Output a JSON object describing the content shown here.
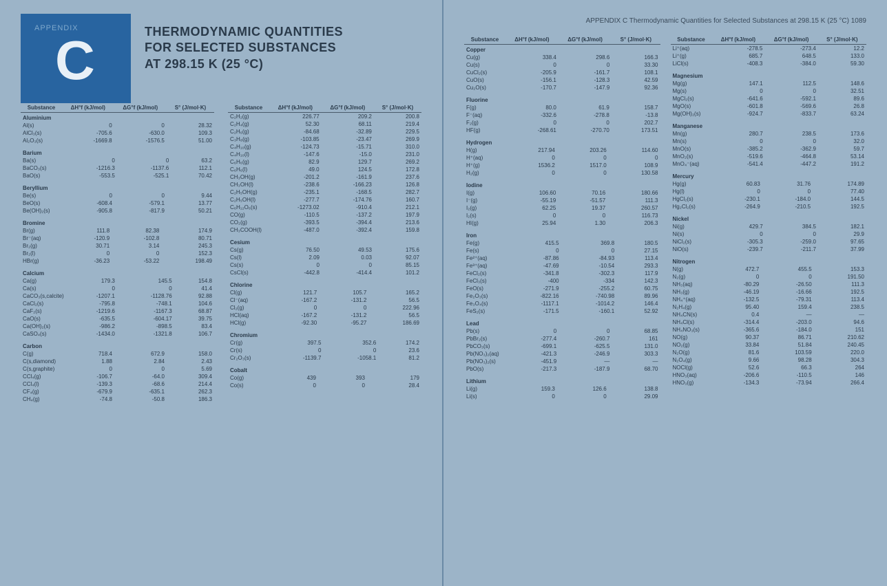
{
  "header": {
    "appendix_label": "APPENDIX",
    "big_letter": "C",
    "title_l1": "THERMODYNAMIC QUANTITIES",
    "title_l2": "FOR SELECTED SUBSTANCES",
    "title_l3": "AT 298.15 K (25 °C)"
  },
  "right_header": "APPENDIX C Thermodynamic Quantities for Selected Substances at 298.15 K (25 °C)   1089",
  "col_headers": {
    "sub": "Substance",
    "dHf": "ΔH°f (kJ/mol)",
    "dGf": "ΔG°f (kJ/mol)",
    "S": "S° (J/mol·K)"
  },
  "left_sections": [
    {
      "name": "Aluminium",
      "rows": [
        {
          "n": "Al(s)",
          "h": "0",
          "g": "0",
          "s": "28.32"
        },
        {
          "n": "AlCl₃(s)",
          "h": "-705.6",
          "g": "-630.0",
          "s": "109.3"
        },
        {
          "n": "Al₂O₃(s)",
          "h": "-1669.8",
          "g": "-1576.5",
          "s": "51.00"
        }
      ]
    },
    {
      "name": "Barium",
      "rows": [
        {
          "n": "Ba(s)",
          "h": "0",
          "g": "0",
          "s": "63.2"
        },
        {
          "n": "BaCO₃(s)",
          "h": "-1216.3",
          "g": "-1137.6",
          "s": "112.1"
        },
        {
          "n": "BaO(s)",
          "h": "-553.5",
          "g": "-525.1",
          "s": "70.42"
        }
      ]
    },
    {
      "name": "Beryllium",
      "rows": [
        {
          "n": "Be(s)",
          "h": "0",
          "g": "0",
          "s": "9.44"
        },
        {
          "n": "BeO(s)",
          "h": "-608.4",
          "g": "-579.1",
          "s": "13.77"
        },
        {
          "n": "Be(OH)₂(s)",
          "h": "-905.8",
          "g": "-817.9",
          "s": "50.21"
        }
      ]
    },
    {
      "name": "Bromine",
      "rows": [
        {
          "n": "Br(g)",
          "h": "111.8",
          "g": "82.38",
          "s": "174.9"
        },
        {
          "n": "Br⁻(aq)",
          "h": "-120.9",
          "g": "-102.8",
          "s": "80.71"
        },
        {
          "n": "Br₂(g)",
          "h": "30.71",
          "g": "3.14",
          "s": "245.3"
        },
        {
          "n": "Br₂(l)",
          "h": "0",
          "g": "0",
          "s": "152.3"
        },
        {
          "n": "HBr(g)",
          "h": "-36.23",
          "g": "-53.22",
          "s": "198.49"
        }
      ]
    },
    {
      "name": "Calcium",
      "rows": [
        {
          "n": "Ca(g)",
          "h": "179.3",
          "g": "145.5",
          "s": "154.8"
        },
        {
          "n": "Ca(s)",
          "h": "0",
          "g": "0",
          "s": "41.4"
        },
        {
          "n": "CaCO₃(s,calcite)",
          "h": "-1207.1",
          "g": "-1128.76",
          "s": "92.88"
        },
        {
          "n": "CaCl₂(s)",
          "h": "-795.8",
          "g": "-748.1",
          "s": "104.6"
        },
        {
          "n": "CaF₂(s)",
          "h": "-1219.6",
          "g": "-1167.3",
          "s": "68.87"
        },
        {
          "n": "CaO(s)",
          "h": "-635.5",
          "g": "-604.17",
          "s": "39.75"
        },
        {
          "n": "Ca(OH)₂(s)",
          "h": "-986.2",
          "g": "-898.5",
          "s": "83.4"
        },
        {
          "n": "CaSO₄(s)",
          "h": "-1434.0",
          "g": "-1321.8",
          "s": "106.7"
        }
      ]
    },
    {
      "name": "Carbon",
      "rows": [
        {
          "n": "C(g)",
          "h": "718.4",
          "g": "672.9",
          "s": "158.0"
        },
        {
          "n": "C(s,diamond)",
          "h": "1.88",
          "g": "2.84",
          "s": "2.43"
        },
        {
          "n": "C(s,graphite)",
          "h": "0",
          "g": "0",
          "s": "5.69"
        },
        {
          "n": "CCl₄(g)",
          "h": "-106.7",
          "g": "-64.0",
          "s": "309.4"
        },
        {
          "n": "CCl₄(l)",
          "h": "-139.3",
          "g": "-68.6",
          "s": "214.4"
        },
        {
          "n": "CF₄(g)",
          "h": "-679.9",
          "g": "-635.1",
          "s": "262.3"
        },
        {
          "n": "CH₄(g)",
          "h": "-74.8",
          "g": "-50.8",
          "s": "186.3"
        }
      ]
    }
  ],
  "left_sections_col2": [
    {
      "name": "",
      "rows": [
        {
          "n": "C₂H₂(g)",
          "h": "226.77",
          "g": "209.2",
          "s": "200.8"
        },
        {
          "n": "C₂H₄(g)",
          "h": "52.30",
          "g": "68.11",
          "s": "219.4"
        },
        {
          "n": "C₂H₆(g)",
          "h": "-84.68",
          "g": "-32.89",
          "s": "229.5"
        },
        {
          "n": "C₃H₈(g)",
          "h": "-103.85",
          "g": "-23.47",
          "s": "269.9"
        },
        {
          "n": "C₄H₁₀(g)",
          "h": "-124.73",
          "g": "-15.71",
          "s": "310.0"
        },
        {
          "n": "C₄H₁₀(l)",
          "h": "-147.6",
          "g": "-15.0",
          "s": "231.0"
        },
        {
          "n": "C₆H₆(g)",
          "h": "82.9",
          "g": "129.7",
          "s": "269.2"
        },
        {
          "n": "C₆H₆(l)",
          "h": "49.0",
          "g": "124.5",
          "s": "172.8"
        },
        {
          "n": "CH₃OH(g)",
          "h": "-201.2",
          "g": "-161.9",
          "s": "237.6"
        },
        {
          "n": "CH₃OH(l)",
          "h": "-238.6",
          "g": "-166.23",
          "s": "126.8"
        },
        {
          "n": "C₂H₅OH(g)",
          "h": "-235.1",
          "g": "-168.5",
          "s": "282.7"
        },
        {
          "n": "C₂H₅OH(l)",
          "h": "-277.7",
          "g": "-174.76",
          "s": "160.7"
        },
        {
          "n": "C₆H₁₂O₆(s)",
          "h": "-1273.02",
          "g": "-910.4",
          "s": "212.1"
        },
        {
          "n": "CO(g)",
          "h": "-110.5",
          "g": "-137.2",
          "s": "197.9"
        },
        {
          "n": "CO₂(g)",
          "h": "-393.5",
          "g": "-394.4",
          "s": "213.6"
        },
        {
          "n": "CH₃COOH(l)",
          "h": "-487.0",
          "g": "-392.4",
          "s": "159.8"
        }
      ]
    },
    {
      "name": "Cesium",
      "rows": [
        {
          "n": "Cs(g)",
          "h": "76.50",
          "g": "49.53",
          "s": "175.6"
        },
        {
          "n": "Cs(l)",
          "h": "2.09",
          "g": "0.03",
          "s": "92.07"
        },
        {
          "n": "Cs(s)",
          "h": "0",
          "g": "0",
          "s": "85.15"
        },
        {
          "n": "CsCl(s)",
          "h": "-442.8",
          "g": "-414.4",
          "s": "101.2"
        }
      ]
    },
    {
      "name": "Chlorine",
      "rows": [
        {
          "n": "Cl(g)",
          "h": "121.7",
          "g": "105.7",
          "s": "165.2"
        },
        {
          "n": "Cl⁻(aq)",
          "h": "-167.2",
          "g": "-131.2",
          "s": "56.5"
        },
        {
          "n": "Cl₂(g)",
          "h": "0",
          "g": "0",
          "s": "222.96"
        },
        {
          "n": "HCl(aq)",
          "h": "-167.2",
          "g": "-131.2",
          "s": "56.5"
        },
        {
          "n": "HCl(g)",
          "h": "-92.30",
          "g": "-95.27",
          "s": "186.69"
        }
      ]
    },
    {
      "name": "Chromium",
      "rows": [
        {
          "n": "Cr(g)",
          "h": "397.5",
          "g": "352.6",
          "s": "174.2"
        },
        {
          "n": "Cr(s)",
          "h": "0",
          "g": "0",
          "s": "23.6"
        },
        {
          "n": "Cr₂O₃(s)",
          "h": "-1139.7",
          "g": "-1058.1",
          "s": "81.2"
        }
      ]
    },
    {
      "name": "Cobalt",
      "rows": [
        {
          "n": "Co(g)",
          "h": "439",
          "g": "393",
          "s": "179"
        },
        {
          "n": "Co(s)",
          "h": "0",
          "g": "0",
          "s": "28.4"
        }
      ]
    }
  ],
  "right_sections": [
    {
      "name": "Copper",
      "rows": [
        {
          "n": "Cu(g)",
          "h": "338.4",
          "g": "298.6",
          "s": "166.3"
        },
        {
          "n": "Cu(s)",
          "h": "0",
          "g": "0",
          "s": "33.30"
        },
        {
          "n": "CuCl₂(s)",
          "h": "-205.9",
          "g": "-161.7",
          "s": "108.1"
        },
        {
          "n": "CuO(s)",
          "h": "-156.1",
          "g": "-128.3",
          "s": "42.59"
        },
        {
          "n": "Cu₂O(s)",
          "h": "-170.7",
          "g": "-147.9",
          "s": "92.36"
        }
      ]
    },
    {
      "name": "Fluorine",
      "rows": [
        {
          "n": "F(g)",
          "h": "80.0",
          "g": "61.9",
          "s": "158.7"
        },
        {
          "n": "F⁻(aq)",
          "h": "-332.6",
          "g": "-278.8",
          "s": "-13.8"
        },
        {
          "n": "F₂(g)",
          "h": "0",
          "g": "0",
          "s": "202.7"
        },
        {
          "n": "HF(g)",
          "h": "-268.61",
          "g": "-270.70",
          "s": "173.51"
        }
      ]
    },
    {
      "name": "Hydrogen",
      "rows": [
        {
          "n": "H(g)",
          "h": "217.94",
          "g": "203.26",
          "s": "114.60"
        },
        {
          "n": "H⁺(aq)",
          "h": "0",
          "g": "0",
          "s": "0"
        },
        {
          "n": "H⁺(g)",
          "h": "1536.2",
          "g": "1517.0",
          "s": "108.9"
        },
        {
          "n": "H₂(g)",
          "h": "0",
          "g": "0",
          "s": "130.58"
        }
      ]
    },
    {
      "name": "Iodine",
      "rows": [
        {
          "n": "I(g)",
          "h": "106.60",
          "g": "70.16",
          "s": "180.66"
        },
        {
          "n": "I⁻(g)",
          "h": "-55.19",
          "g": "-51.57",
          "s": "111.3"
        },
        {
          "n": "I₂(g)",
          "h": "62.25",
          "g": "19.37",
          "s": "260.57"
        },
        {
          "n": "I₂(s)",
          "h": "0",
          "g": "0",
          "s": "116.73"
        },
        {
          "n": "HI(g)",
          "h": "25.94",
          "g": "1.30",
          "s": "206.3"
        }
      ]
    },
    {
      "name": "Iron",
      "rows": [
        {
          "n": "Fe(g)",
          "h": "415.5",
          "g": "369.8",
          "s": "180.5"
        },
        {
          "n": "Fe(s)",
          "h": "0",
          "g": "0",
          "s": "27.15"
        },
        {
          "n": "Fe²⁺(aq)",
          "h": "-87.86",
          "g": "-84.93",
          "s": "113.4"
        },
        {
          "n": "Fe³⁺(aq)",
          "h": "-47.69",
          "g": "-10.54",
          "s": "293.3"
        },
        {
          "n": "FeCl₂(s)",
          "h": "-341.8",
          "g": "-302.3",
          "s": "117.9"
        },
        {
          "n": "FeCl₃(s)",
          "h": "-400",
          "g": "-334",
          "s": "142.3"
        },
        {
          "n": "FeO(s)",
          "h": "-271.9",
          "g": "-255.2",
          "s": "60.75"
        },
        {
          "n": "Fe₂O₃(s)",
          "h": "-822.16",
          "g": "-740.98",
          "s": "89.96"
        },
        {
          "n": "Fe₃O₄(s)",
          "h": "-1117.1",
          "g": "-1014.2",
          "s": "146.4"
        },
        {
          "n": "FeS₂(s)",
          "h": "-171.5",
          "g": "-160.1",
          "s": "52.92"
        }
      ]
    },
    {
      "name": "Lead",
      "rows": [
        {
          "n": "Pb(s)",
          "h": "0",
          "g": "0",
          "s": "68.85"
        },
        {
          "n": "PbBr₂(s)",
          "h": "-277.4",
          "g": "-260.7",
          "s": "161"
        },
        {
          "n": "PbCO₃(s)",
          "h": "-699.1",
          "g": "-625.5",
          "s": "131.0"
        },
        {
          "n": "Pb(NO₃)₂(aq)",
          "h": "-421.3",
          "g": "-246.9",
          "s": "303.3"
        },
        {
          "n": "Pb(NO₃)₂(s)",
          "h": "-451.9",
          "g": "—",
          "s": "—"
        },
        {
          "n": "PbO(s)",
          "h": "-217.3",
          "g": "-187.9",
          "s": "68.70"
        }
      ]
    },
    {
      "name": "Lithium",
      "rows": [
        {
          "n": "Li(g)",
          "h": "159.3",
          "g": "126.6",
          "s": "138.8"
        },
        {
          "n": "Li(s)",
          "h": "0",
          "g": "0",
          "s": "29.09"
        }
      ]
    }
  ],
  "right_sections_col2": [
    {
      "name": "",
      "rows": [
        {
          "n": "Li⁺(aq)",
          "h": "-278.5",
          "g": "-273.4",
          "s": "12.2"
        },
        {
          "n": "Li⁺(g)",
          "h": "685.7",
          "g": "648.5",
          "s": "133.0"
        },
        {
          "n": "LiCl(s)",
          "h": "-408.3",
          "g": "-384.0",
          "s": "59.30"
        }
      ]
    },
    {
      "name": "Magnesium",
      "rows": [
        {
          "n": "Mg(g)",
          "h": "147.1",
          "g": "112.5",
          "s": "148.6"
        },
        {
          "n": "Mg(s)",
          "h": "0",
          "g": "0",
          "s": "32.51"
        },
        {
          "n": "MgCl₂(s)",
          "h": "-641.6",
          "g": "-592.1",
          "s": "89.6"
        },
        {
          "n": "MgO(s)",
          "h": "-601.8",
          "g": "-569.6",
          "s": "26.8"
        },
        {
          "n": "Mg(OH)₂(s)",
          "h": "-924.7",
          "g": "-833.7",
          "s": "63.24"
        }
      ]
    },
    {
      "name": "Manganese",
      "rows": [
        {
          "n": "Mn(g)",
          "h": "280.7",
          "g": "238.5",
          "s": "173.6"
        },
        {
          "n": "Mn(s)",
          "h": "0",
          "g": "0",
          "s": "32.0"
        },
        {
          "n": "MnO(s)",
          "h": "-385.2",
          "g": "-362.9",
          "s": "59.7"
        },
        {
          "n": "MnO₂(s)",
          "h": "-519.6",
          "g": "-464.8",
          "s": "53.14"
        },
        {
          "n": "MnO₄⁻(aq)",
          "h": "-541.4",
          "g": "-447.2",
          "s": "191.2"
        }
      ]
    },
    {
      "name": "Mercury",
      "rows": [
        {
          "n": "Hg(g)",
          "h": "60.83",
          "g": "31.76",
          "s": "174.89"
        },
        {
          "n": "Hg(l)",
          "h": "0",
          "g": "0",
          "s": "77.40"
        },
        {
          "n": "HgCl₂(s)",
          "h": "-230.1",
          "g": "-184.0",
          "s": "144.5"
        },
        {
          "n": "Hg₂Cl₂(s)",
          "h": "-264.9",
          "g": "-210.5",
          "s": "192.5"
        }
      ]
    },
    {
      "name": "Nickel",
      "rows": [
        {
          "n": "Ni(g)",
          "h": "429.7",
          "g": "384.5",
          "s": "182.1"
        },
        {
          "n": "Ni(s)",
          "h": "0",
          "g": "0",
          "s": "29.9"
        },
        {
          "n": "NiCl₂(s)",
          "h": "-305.3",
          "g": "-259.0",
          "s": "97.65"
        },
        {
          "n": "NiO(s)",
          "h": "-239.7",
          "g": "-211.7",
          "s": "37.99"
        }
      ]
    },
    {
      "name": "Nitrogen",
      "rows": [
        {
          "n": "N(g)",
          "h": "472.7",
          "g": "455.5",
          "s": "153.3"
        },
        {
          "n": "N₂(g)",
          "h": "0",
          "g": "0",
          "s": "191.50"
        },
        {
          "n": "NH₃(aq)",
          "h": "-80.29",
          "g": "-26.50",
          "s": "111.3"
        },
        {
          "n": "NH₃(g)",
          "h": "-46.19",
          "g": "-16.66",
          "s": "192.5"
        },
        {
          "n": "NH₄⁺(aq)",
          "h": "-132.5",
          "g": "-79.31",
          "s": "113.4"
        },
        {
          "n": "N₂H₄(g)",
          "h": "95.40",
          "g": "159.4",
          "s": "238.5"
        },
        {
          "n": "NH₄CN(s)",
          "h": "0.4",
          "g": "—",
          "s": "—"
        },
        {
          "n": "NH₄Cl(s)",
          "h": "-314.4",
          "g": "-203.0",
          "s": "94.6"
        },
        {
          "n": "NH₄NO₃(s)",
          "h": "-365.6",
          "g": "-184.0",
          "s": "151"
        },
        {
          "n": "NO(g)",
          "h": "90.37",
          "g": "86.71",
          "s": "210.62"
        },
        {
          "n": "NO₂(g)",
          "h": "33.84",
          "g": "51.84",
          "s": "240.45"
        },
        {
          "n": "N₂O(g)",
          "h": "81.6",
          "g": "103.59",
          "s": "220.0"
        },
        {
          "n": "N₂O₄(g)",
          "h": "9.66",
          "g": "98.28",
          "s": "304.3"
        },
        {
          "n": "NOCl(g)",
          "h": "52.6",
          "g": "66.3",
          "s": "264"
        },
        {
          "n": "HNO₃(aq)",
          "h": "-206.6",
          "g": "-110.5",
          "s": "146"
        },
        {
          "n": "HNO₃(g)",
          "h": "-134.3",
          "g": "-73.94",
          "s": "266.4"
        }
      ]
    }
  ],
  "style": {
    "bg_color": "#9cb4c8",
    "header_bg": "#2864a0",
    "text_color": "#2a3a4a",
    "title_fontsize": 18,
    "table_fontsize": 8
  }
}
